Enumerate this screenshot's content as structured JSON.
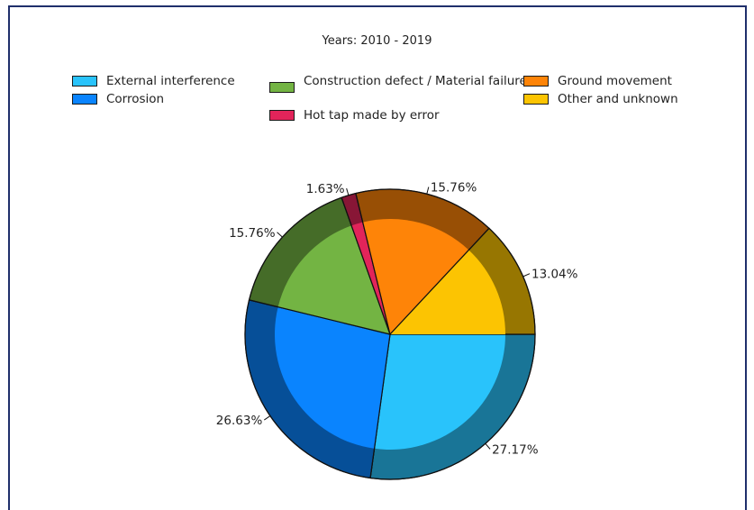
{
  "chart_data": {
    "type": "pie",
    "title": "Years: 2010 - 2019",
    "legend_position": "top",
    "slices": [
      {
        "label": "External interference",
        "value": 27.17,
        "value_label": "27.17%",
        "color": "#29c3fb"
      },
      {
        "label": "Corrosion",
        "value": 26.63,
        "value_label": "26.63%",
        "color": "#0a84fe"
      },
      {
        "label": "Construction defect / Material failure",
        "value": 15.76,
        "value_label": "15.76%",
        "color": "#73b443"
      },
      {
        "label": "Hot tap made by error",
        "value": 1.63,
        "value_label": "1.63%",
        "color": "#e2245a"
      },
      {
        "label": "Ground movement",
        "value": 15.76,
        "value_label": "15.76%",
        "color": "#fe8408"
      },
      {
        "label": "Other and unknown",
        "value": 13.04,
        "value_label": "13.04%",
        "color": "#fcc402"
      }
    ]
  }
}
